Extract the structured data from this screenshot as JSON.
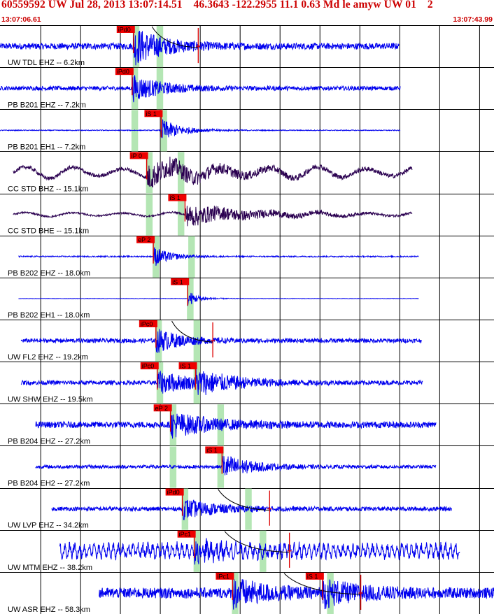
{
  "header": {
    "title": "60559592 UW Jul 28, 2013 13:07:14.51    46.3643 -122.2955 11.1 0.63 Md le amyw UW 01    2",
    "start_time": "13:07:06.61",
    "end_time": "13:07:43.99"
  },
  "colors": {
    "header_text": "#cc0000",
    "trace_blue": "#0000ee",
    "trace_purple": "#2a0050",
    "pick_box": "#ee0000",
    "marker_red": "#dd0000",
    "window_green": "#b4e6b4",
    "grid": "#000000",
    "travel_curve": "#000000"
  },
  "chart_data": {
    "type": "seismogram",
    "x_unit": "seconds after 13:07:06.61",
    "xlim": [
      0,
      37.38
    ],
    "vertical_grid_seconds": [
      3.08,
      6.1,
      9.11,
      12.13,
      15.15,
      18.17,
      21.19,
      24.21,
      27.23,
      30.25,
      33.27,
      36.29
    ],
    "traces": [
      {
        "label": "UW TDL EHZ -- 6.2km",
        "color": "#0000ee",
        "start": 0.0,
        "end": 30.2,
        "amp": 0.15,
        "burst_amp": 0.85,
        "decay": 2.2,
        "picks": [
          {
            "text": "iPd0",
            "t": 10.1,
            "signal": true
          }
        ],
        "windows": [
          {
            "t": 10.1,
            "w": 0.5
          },
          {
            "t": 11.9,
            "w": 0.5
          }
        ],
        "markers": [
          15.0
        ],
        "curve": [
          11.5,
          15.0
        ]
      },
      {
        "label": "PB B201 EHZ -- 7.2km",
        "color": "#0000ee",
        "start": 0.0,
        "end": 30.3,
        "amp": 0.1,
        "burst_amp": 0.6,
        "decay": 2.2,
        "picks": [
          {
            "text": "iPd0",
            "t": 10.0,
            "signal": true
          }
        ],
        "windows": [
          {
            "t": 10.0,
            "w": 0.5
          },
          {
            "t": 11.9,
            "w": 0.5
          }
        ]
      },
      {
        "label": "PB B201 EH1 -- 7.2km",
        "color": "#0000ee",
        "start": 0.0,
        "end": 30.3,
        "amp": 0.02,
        "burst_amp": 0.55,
        "decay": 1.5,
        "picks": [
          {
            "text": "iS 1",
            "t": 12.2,
            "signal": true
          }
        ],
        "windows": [
          {
            "t": 10.0,
            "w": 0.5
          },
          {
            "t": 12.2,
            "w": 0.5
          }
        ]
      },
      {
        "label": "CC STD BHZ -- 15.1km",
        "color": "#2a0050",
        "start": 1.0,
        "end": 31.2,
        "amp": 0.09,
        "burst_amp": 0.55,
        "decay": 5.0,
        "lowfreq": 0.22,
        "picks": [
          {
            "text": "iP 0",
            "t": 11.1,
            "signal": true
          }
        ],
        "windows": [
          {
            "t": 11.1,
            "w": 0.5
          },
          {
            "t": 13.5,
            "w": 0.5
          }
        ]
      },
      {
        "label": "CC STD BHE -- 15.1km",
        "color": "#2a0050",
        "start": 1.0,
        "end": 31.2,
        "amp": 0.04,
        "burst_amp": 0.5,
        "decay": 5.0,
        "lowfreq": 0.08,
        "picks": [
          {
            "text": "iS 1",
            "t": 14.0,
            "signal": true
          }
        ],
        "windows": [
          {
            "t": 11.1,
            "w": 0.5
          },
          {
            "t": 13.5,
            "w": 0.5
          }
        ]
      },
      {
        "label": "PB B202 EHZ -- 18.0km",
        "color": "#0000ee",
        "start": 1.4,
        "end": 31.7,
        "amp": 0.03,
        "burst_amp": 0.5,
        "decay": 1.2,
        "picks": [
          {
            "text": "eP 2",
            "t": 11.6,
            "signal": true
          }
        ],
        "windows": [
          {
            "t": 11.6,
            "w": 0.5
          },
          {
            "t": 14.3,
            "w": 0.5
          }
        ]
      },
      {
        "label": "PB B202 EH1 -- 18.0km",
        "color": "#0000ee",
        "start": 1.4,
        "end": 31.7,
        "amp": 0.01,
        "burst_amp": 0.4,
        "decay": 0.8,
        "picks": [
          {
            "text": "iS 1",
            "t": 14.2,
            "signal": true
          }
        ],
        "windows": [
          {
            "t": 14.2,
            "w": 0.5
          }
        ]
      },
      {
        "label": "UW FL2 EHZ -- 19.2km",
        "color": "#0000ee",
        "start": 1.6,
        "end": 31.9,
        "amp": 0.1,
        "burst_amp": 0.55,
        "decay": 1.8,
        "picks": [
          {
            "text": "iPc0",
            "t": 11.8,
            "signal": true
          }
        ],
        "windows": [
          {
            "t": 11.8,
            "w": 0.5
          },
          {
            "t": 14.7,
            "w": 0.5
          }
        ],
        "markers": [
          16.1
        ],
        "curve": [
          13.0,
          16.1
        ]
      },
      {
        "label": "UW SHW EHZ -- 19.5km",
        "color": "#0000ee",
        "start": 1.6,
        "end": 32.0,
        "amp": 0.1,
        "burst_amp": 0.5,
        "decay": 3.0,
        "picks": [
          {
            "text": "iPc0",
            "t": 11.9,
            "signal": true
          },
          {
            "text": "iS 1",
            "t": 14.8,
            "signal": true
          }
        ],
        "windows": [
          {
            "t": 11.9,
            "w": 0.5
          },
          {
            "t": 14.7,
            "w": 0.5
          }
        ]
      },
      {
        "label": "PB B204 EHZ -- 27.2km",
        "color": "#0000ee",
        "start": 2.7,
        "end": 33.0,
        "amp": 0.15,
        "burst_amp": 0.55,
        "decay": 3.0,
        "picks": [
          {
            "text": "eP 2",
            "t": 12.9,
            "signal": true
          }
        ],
        "windows": [
          {
            "t": 12.9,
            "w": 0.5
          },
          {
            "t": 16.5,
            "w": 0.5
          }
        ]
      },
      {
        "label": "PB B204 EH2 -- 27.2km",
        "color": "#0000ee",
        "start": 2.7,
        "end": 33.0,
        "amp": 0.08,
        "burst_amp": 0.6,
        "decay": 2.0,
        "picks": [
          {
            "text": "iS 1",
            "t": 16.8,
            "signal": true
          }
        ],
        "windows": [
          {
            "t": 12.9,
            "w": 0.5
          },
          {
            "t": 16.5,
            "w": 0.5
          }
        ]
      },
      {
        "label": "UW LVP EHZ -- 34.2km",
        "color": "#0000ee",
        "start": 3.9,
        "end": 34.2,
        "amp": 0.1,
        "burst_amp": 0.45,
        "decay": 2.5,
        "picks": [
          {
            "text": "iPd0",
            "t": 13.8,
            "signal": true
          }
        ],
        "windows": [
          {
            "t": 13.8,
            "w": 0.5
          },
          {
            "t": 18.6,
            "w": 0.5
          }
        ],
        "markers": [
          20.4
        ],
        "curve": [
          16.5,
          20.4
        ]
      },
      {
        "label": "UW MTM EHZ -- 38.2km",
        "color": "#0000ee",
        "start": 4.5,
        "end": 34.8,
        "amp": 0.35,
        "burst_amp": 0.55,
        "decay": 2.0,
        "picks": [
          {
            "text": "iPc1",
            "t": 14.7,
            "signal": true
          }
        ],
        "windows": [
          {
            "t": 14.7,
            "w": 0.5
          },
          {
            "t": 19.7,
            "w": 0.5
          }
        ],
        "markers": [
          21.9
        ],
        "curve": [
          17.0,
          21.9
        ]
      },
      {
        "label": "UW ASR EHZ -- 58.3km",
        "color": "#0000ee",
        "start": 7.5,
        "end": 37.8,
        "amp": 0.25,
        "burst_amp": 0.6,
        "decay": 2.5,
        "picks": [
          {
            "text": "iPc1",
            "t": 17.6,
            "signal": true
          },
          {
            "text": "iS 1",
            "t": 24.4,
            "signal": true
          }
        ],
        "windows": [
          {
            "t": 17.6,
            "w": 0.5
          },
          {
            "t": 24.8,
            "w": 0.5
          }
        ],
        "markers": [
          27.3
        ],
        "curve": [
          21.5,
          27.3
        ]
      }
    ]
  }
}
